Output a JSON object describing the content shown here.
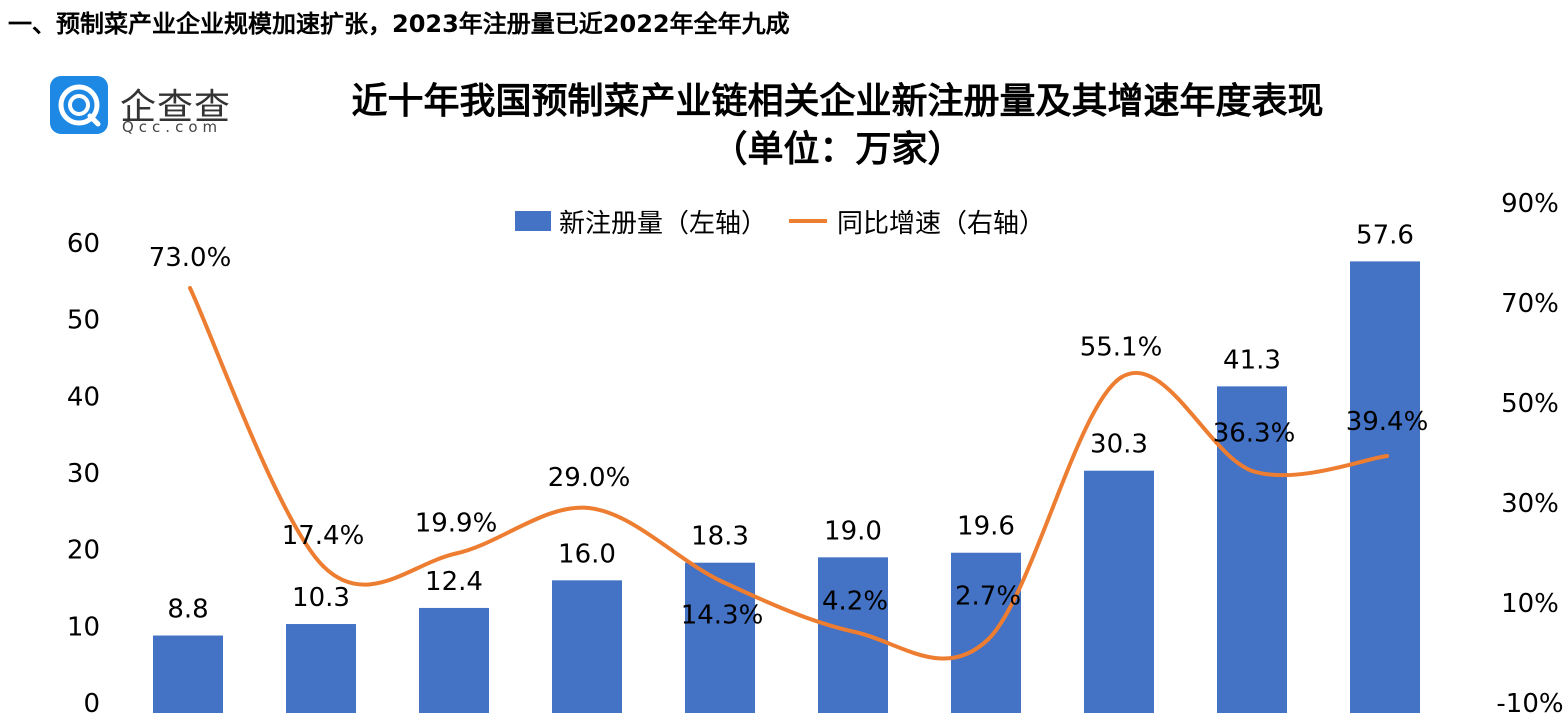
{
  "section_heading": "一、预制菜产业企业规模加速扩张，2023年注册量已近2022年全年九成",
  "logo": {
    "name": "企查查",
    "domain": "Qcc.com"
  },
  "colors": {
    "bar": "#4472c4",
    "line": "#ed7d31",
    "logo": "#1e88e5"
  },
  "icons": {
    "logo": "qcc-logo-icon"
  },
  "chart_data": {
    "type": "bar",
    "title": "近十年我国预制菜产业链相关企业新注册量及其增速年度表现",
    "subtitle": "（单位：万家）",
    "categories": [
      "",
      "",
      "",
      "",
      "",
      "",
      "",
      "",
      "",
      ""
    ],
    "series": [
      {
        "name": "新注册量（左轴）",
        "type": "bar",
        "axis": "left",
        "values": [
          8.8,
          10.3,
          12.4,
          16.0,
          18.3,
          19.0,
          19.6,
          30.3,
          41.3,
          57.6
        ],
        "labels": [
          "8.8",
          "10.3",
          "12.4",
          "16.0",
          "18.3",
          "19.0",
          "19.6",
          "30.3",
          "41.3",
          "57.6"
        ]
      },
      {
        "name": "同比增速（右轴）",
        "type": "line",
        "axis": "right",
        "values": [
          73.0,
          17.4,
          19.9,
          29.0,
          14.3,
          4.2,
          2.7,
          55.1,
          36.3,
          39.4
        ],
        "labels": [
          "73.0%",
          "17.4%",
          "19.9%",
          "29.0%",
          "14.3%",
          "4.2%",
          "2.7%",
          "55.1%",
          "36.3%",
          "39.4%"
        ]
      }
    ],
    "y_left": {
      "min": 0,
      "max": 60,
      "ticks": [
        "0",
        "10",
        "20",
        "30",
        "40",
        "50",
        "60"
      ]
    },
    "y_right": {
      "min": -10,
      "max": 90,
      "ticks": [
        "-10%",
        "10%",
        "30%",
        "50%",
        "70%",
        "90%"
      ]
    },
    "legend_position": "top-center",
    "grid": false
  }
}
